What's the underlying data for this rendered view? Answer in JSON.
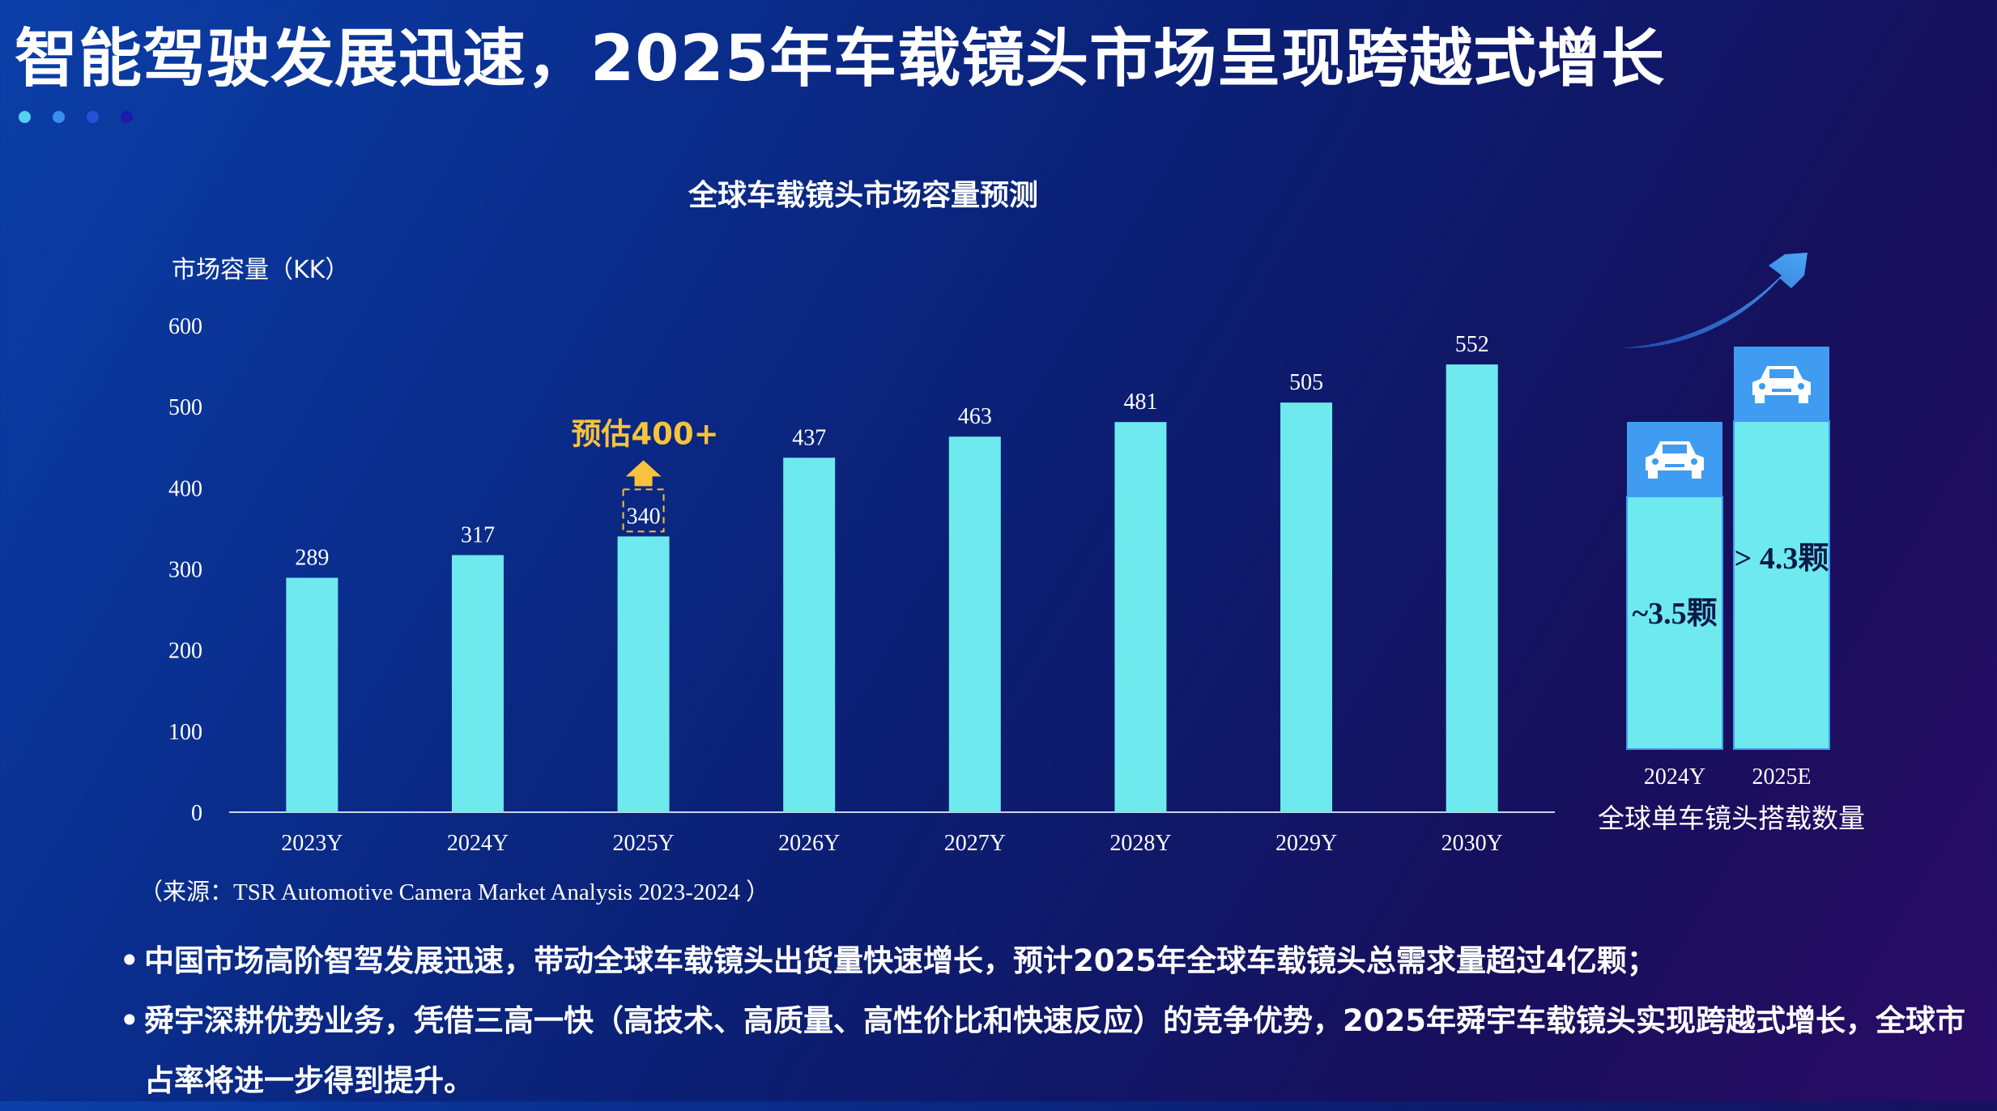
{
  "page": {
    "title": "智能驾驶发展迅速，2025年车载镜头市场呈现跨越式增长",
    "dot_colors": [
      "#56d0f0",
      "#3a8cf0",
      "#2a4fd8",
      "#1a1ba8"
    ]
  },
  "chart_data": [
    {
      "type": "bar",
      "title": "全球车载镜头市场容量预测",
      "ylabel": "市场容量（KK）",
      "xlabel": "",
      "categories": [
        "2023Y",
        "2024Y",
        "2025Y",
        "2026Y",
        "2027Y",
        "2028Y",
        "2029Y",
        "2030Y"
      ],
      "values": [
        289,
        317,
        340,
        437,
        463,
        481,
        505,
        552
      ],
      "ylim": [
        0,
        600
      ],
      "yticks": [
        0,
        100,
        200,
        300,
        400,
        500,
        600
      ],
      "grid": false,
      "bar_color": "#6ee9ee",
      "annotation": {
        "text": "预估400+",
        "category": "2025Y",
        "target_value": 400,
        "color": "#f7c23c"
      }
    },
    {
      "type": "bar",
      "xlabel": "全球单车镜头搭载数量",
      "categories": [
        "2024Y",
        "2025E"
      ],
      "value_labels": [
        "~3.5颗",
        "> 4.3颗"
      ],
      "values": [
        3.5,
        4.3
      ],
      "bar_color": "#6ee9ee",
      "cap_color": "#3f9cf0",
      "icon": "car-icon",
      "arrow_color": "#3f9cf0"
    }
  ],
  "source": "（来源：TSR Automotive Camera Market Analysis 2023-2024 ）",
  "bullets": [
    "中国市场高阶智驾发展迅速，带动全球车载镜头出货量快速增长，预计2025年全球车载镜头总需求量超过4亿颗；",
    "舜宇深耕优势业务，凭借三高一快（高技术、高质量、高性价比和快速反应）的竞争优势，2025年舜宇车载镜头实现跨越式增长，全球市占率将进一步得到提升。"
  ],
  "bullet_mark": "•"
}
